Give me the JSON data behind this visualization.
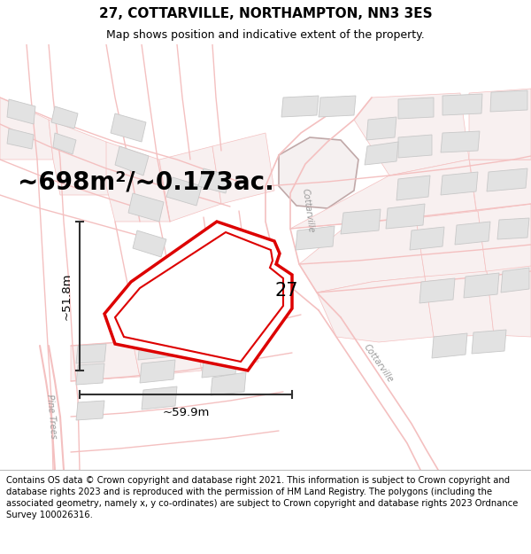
{
  "title_line1": "27, COTTARVILLE, NORTHAMPTON, NN3 3ES",
  "title_line2": "Map shows position and indicative extent of the property.",
  "footer_text": "Contains OS data © Crown copyright and database right 2021. This information is subject to Crown copyright and database rights 2023 and is reproduced with the permission of HM Land Registry. The polygons (including the associated geometry, namely x, y co-ordinates) are subject to Crown copyright and database rights 2023 Ordnance Survey 100026316.",
  "area_label": "~698m²/~0.173ac.",
  "label_27": "27",
  "dim_width": "~59.9m",
  "dim_height": "~51.8m",
  "bg_color": "#ffffff",
  "map_bg": "#ffffff",
  "road_color": "#f4c0c0",
  "road_fill": "#f8e8e8",
  "building_color": "#e2e2e2",
  "building_edge": "#c8c8c8",
  "highlight_color": "#dd0000",
  "dim_color": "#303030",
  "street_color": "#aaaaaa",
  "title_fontsize": 11,
  "subtitle_fontsize": 9,
  "footer_fontsize": 7.2,
  "area_fontsize": 20,
  "label_fontsize": 15,
  "dim_fontsize": 9.5
}
